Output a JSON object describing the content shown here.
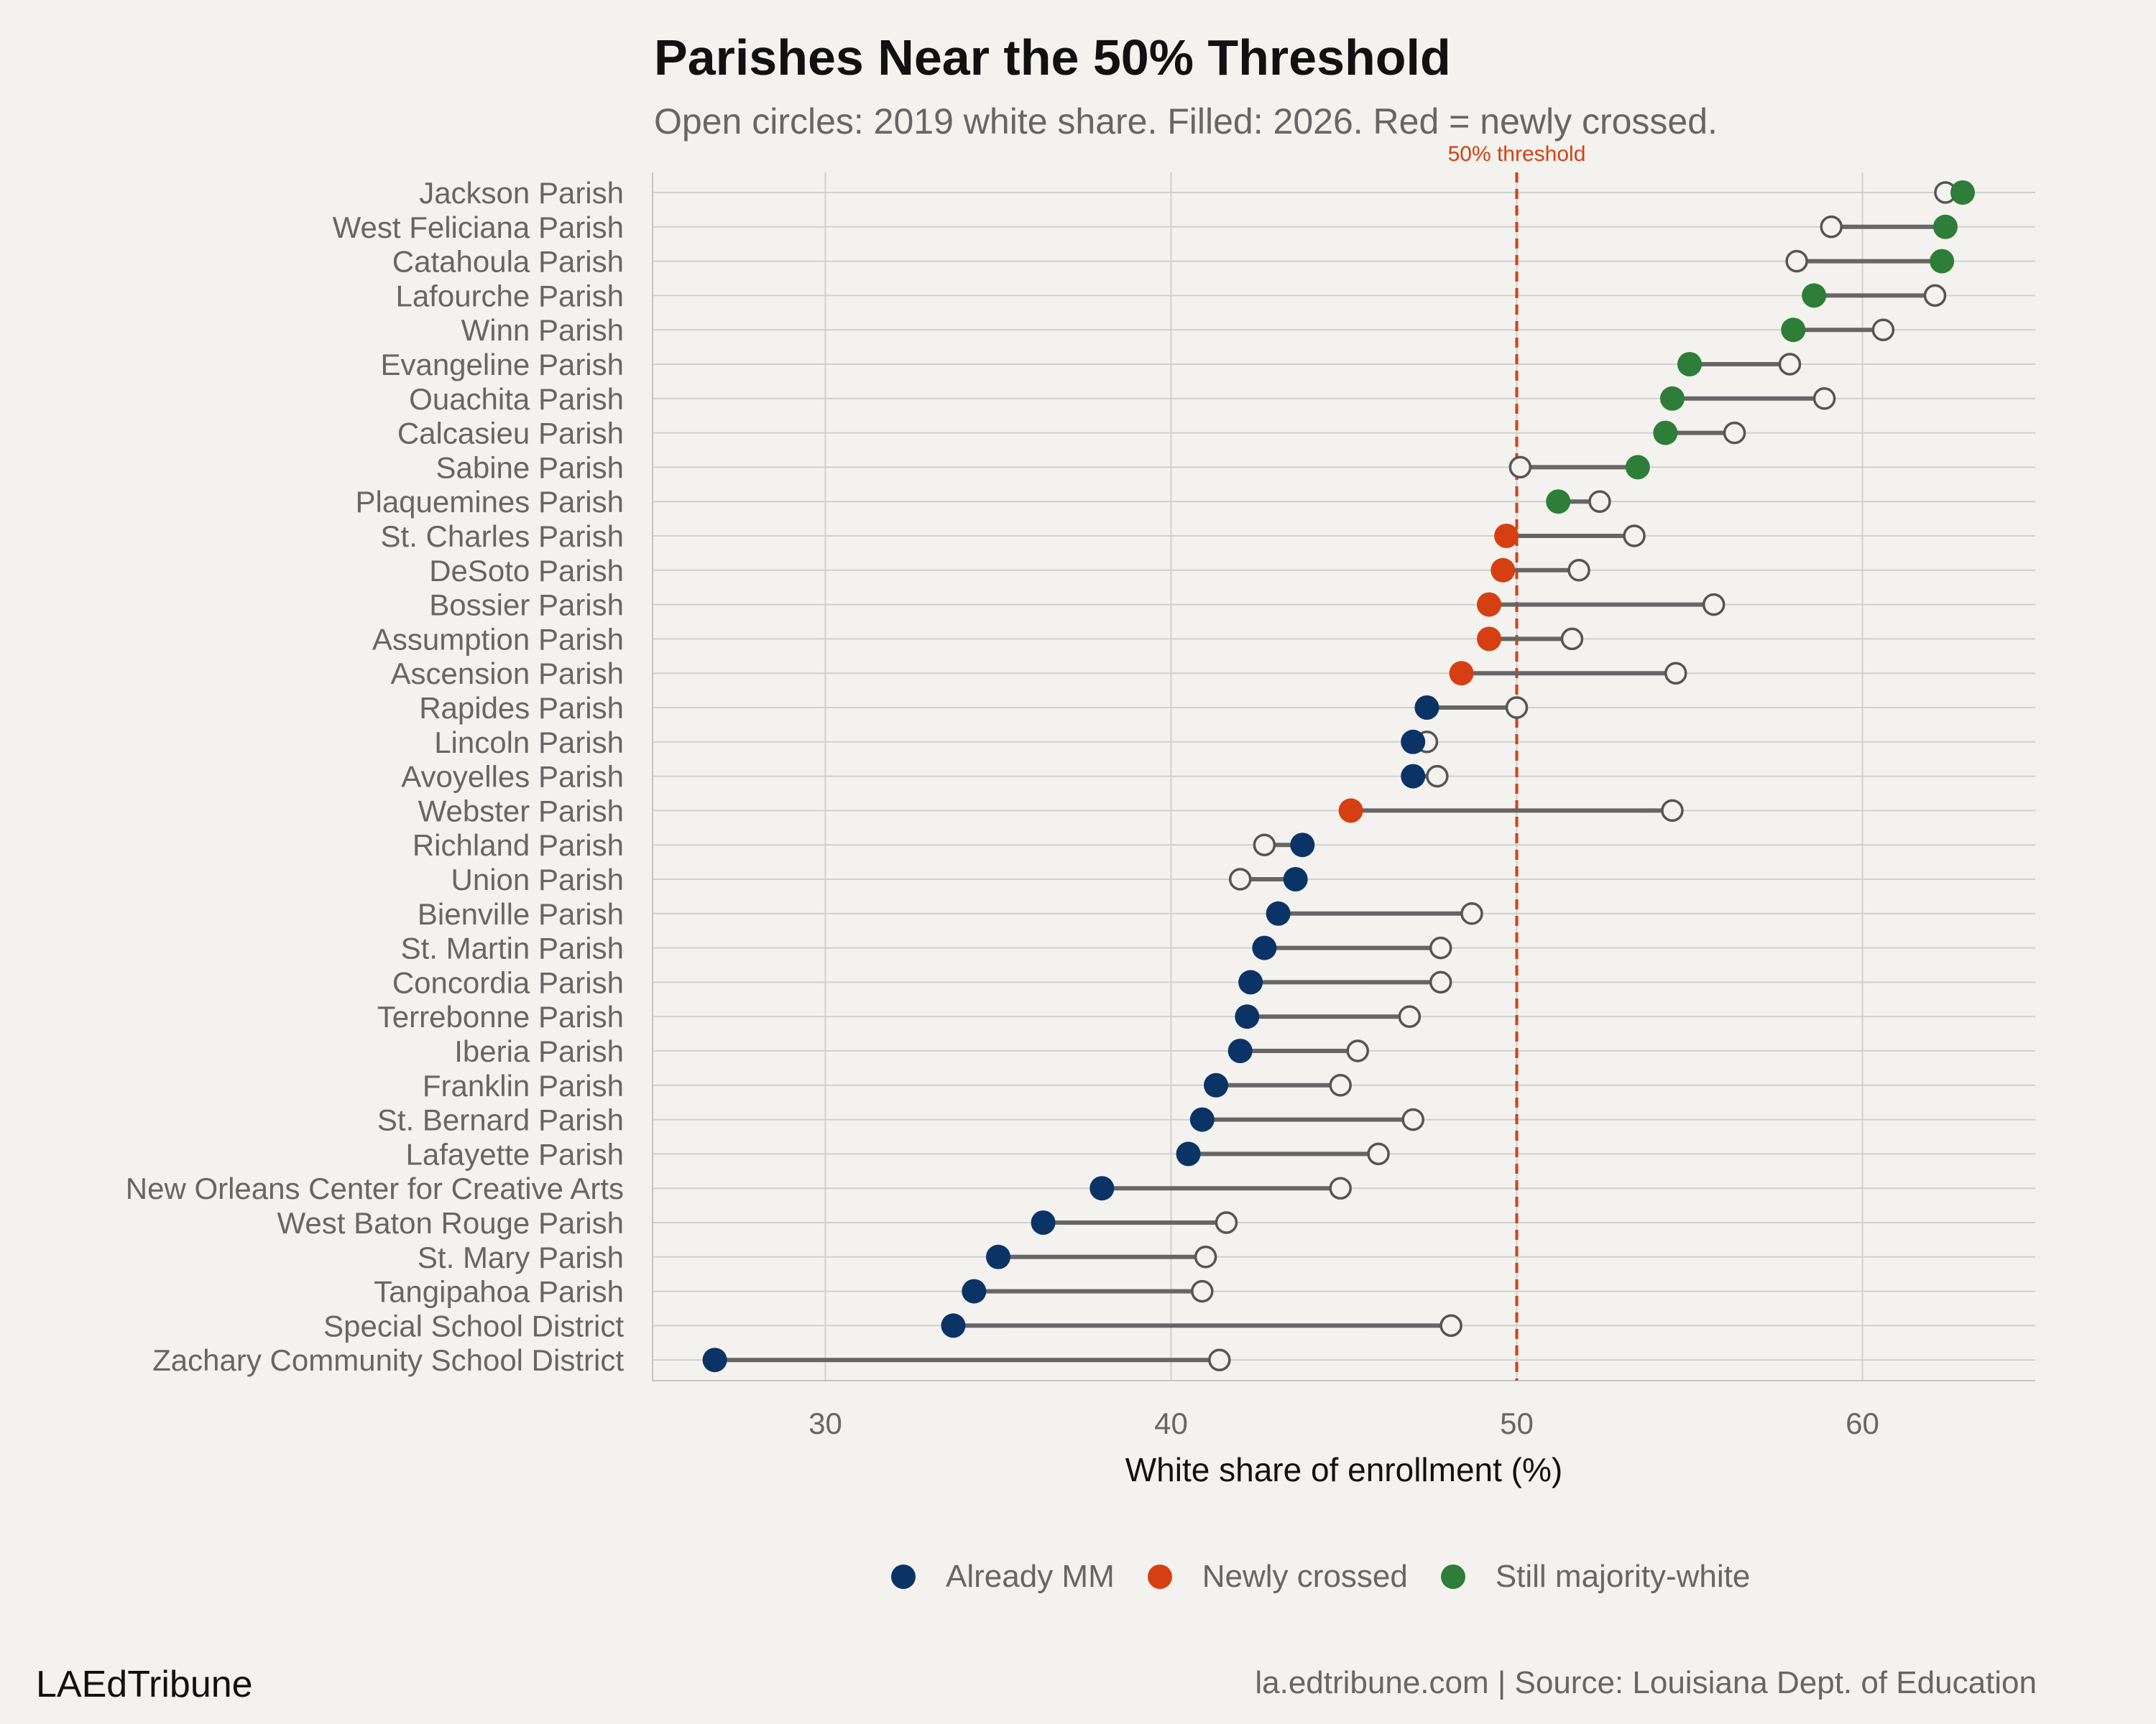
{
  "title": "Parishes Near the 50% Threshold",
  "subtitle": "Open circles: 2019 white share. Filled: 2026. Red = newly crossed.",
  "colors": {
    "already_mm": "#0b3366",
    "newly_crossed": "#d63f12",
    "still_majority_white": "#2e7d38",
    "segment": "#666666",
    "open_circle": "#555555",
    "threshold": "#d63f12",
    "grid": "#d0d0d0",
    "background": "#f4f2ee"
  },
  "legend": [
    {
      "key": "already_mm",
      "label": "Already MM"
    },
    {
      "key": "newly_crossed",
      "label": "Newly crossed"
    },
    {
      "key": "still_majority_white",
      "label": "Still majority-white"
    }
  ],
  "footer": {
    "brand": "LAEdTribune",
    "source": "la.edtribune.com | Source: Louisiana Dept. of Education"
  },
  "chart_data": {
    "type": "dumbbell",
    "xlabel": "White share of enrollment (%)",
    "ylabel": "",
    "xlim": [
      25,
      65
    ],
    "x_ticks": [
      30,
      40,
      50,
      60
    ],
    "grid": true,
    "legend_position": "bottom",
    "threshold": {
      "value": 50,
      "label": "50% threshold"
    },
    "series_labels": {
      "start": "2019",
      "end": "2026"
    },
    "rows": [
      {
        "name": "Jackson Parish",
        "y2019": 62.4,
        "y2026": 62.9,
        "category": "still_majority_white"
      },
      {
        "name": "West Feliciana Parish",
        "y2019": 59.1,
        "y2026": 62.4,
        "category": "still_majority_white"
      },
      {
        "name": "Catahoula Parish",
        "y2019": 58.1,
        "y2026": 62.3,
        "category": "still_majority_white"
      },
      {
        "name": "Lafourche Parish",
        "y2019": 62.1,
        "y2026": 58.6,
        "category": "still_majority_white"
      },
      {
        "name": "Winn Parish",
        "y2019": 60.6,
        "y2026": 58.0,
        "category": "still_majority_white"
      },
      {
        "name": "Evangeline Parish",
        "y2019": 57.9,
        "y2026": 55.0,
        "category": "still_majority_white"
      },
      {
        "name": "Ouachita Parish",
        "y2019": 58.9,
        "y2026": 54.5,
        "category": "still_majority_white"
      },
      {
        "name": "Calcasieu Parish",
        "y2019": 56.3,
        "y2026": 54.3,
        "category": "still_majority_white"
      },
      {
        "name": "Sabine Parish",
        "y2019": 50.1,
        "y2026": 53.5,
        "category": "still_majority_white"
      },
      {
        "name": "Plaquemines Parish",
        "y2019": 52.4,
        "y2026": 51.2,
        "category": "still_majority_white"
      },
      {
        "name": "St. Charles Parish",
        "y2019": 53.4,
        "y2026": 49.7,
        "category": "newly_crossed"
      },
      {
        "name": "DeSoto Parish",
        "y2019": 51.8,
        "y2026": 49.6,
        "category": "newly_crossed"
      },
      {
        "name": "Bossier Parish",
        "y2019": 55.7,
        "y2026": 49.2,
        "category": "newly_crossed"
      },
      {
        "name": "Assumption Parish",
        "y2019": 51.6,
        "y2026": 49.2,
        "category": "newly_crossed"
      },
      {
        "name": "Ascension Parish",
        "y2019": 54.6,
        "y2026": 48.4,
        "category": "newly_crossed"
      },
      {
        "name": "Rapides Parish",
        "y2019": 50.0,
        "y2026": 47.4,
        "category": "already_mm"
      },
      {
        "name": "Lincoln Parish",
        "y2019": 47.4,
        "y2026": 47.0,
        "category": "already_mm"
      },
      {
        "name": "Avoyelles Parish",
        "y2019": 47.7,
        "y2026": 47.0,
        "category": "already_mm"
      },
      {
        "name": "Webster Parish",
        "y2019": 54.5,
        "y2026": 45.2,
        "category": "newly_crossed"
      },
      {
        "name": "Richland Parish",
        "y2019": 42.7,
        "y2026": 43.8,
        "category": "already_mm"
      },
      {
        "name": "Union Parish",
        "y2019": 42.0,
        "y2026": 43.6,
        "category": "already_mm"
      },
      {
        "name": "Bienville Parish",
        "y2019": 48.7,
        "y2026": 43.1,
        "category": "already_mm"
      },
      {
        "name": "St. Martin Parish",
        "y2019": 47.8,
        "y2026": 42.7,
        "category": "already_mm"
      },
      {
        "name": "Concordia Parish",
        "y2019": 47.8,
        "y2026": 42.3,
        "category": "already_mm"
      },
      {
        "name": "Terrebonne Parish",
        "y2019": 46.9,
        "y2026": 42.2,
        "category": "already_mm"
      },
      {
        "name": "Iberia Parish",
        "y2019": 45.4,
        "y2026": 42.0,
        "category": "already_mm"
      },
      {
        "name": "Franklin Parish",
        "y2019": 44.9,
        "y2026": 41.3,
        "category": "already_mm"
      },
      {
        "name": "St. Bernard Parish",
        "y2019": 47.0,
        "y2026": 40.9,
        "category": "already_mm"
      },
      {
        "name": "Lafayette Parish",
        "y2019": 46.0,
        "y2026": 40.5,
        "category": "already_mm"
      },
      {
        "name": "New Orleans Center for Creative Arts",
        "y2019": 44.9,
        "y2026": 38.0,
        "category": "already_mm"
      },
      {
        "name": "West Baton Rouge Parish",
        "y2019": 41.6,
        "y2026": 36.3,
        "category": "already_mm"
      },
      {
        "name": "St. Mary Parish",
        "y2019": 41.0,
        "y2026": 35.0,
        "category": "already_mm"
      },
      {
        "name": "Tangipahoa Parish",
        "y2019": 40.9,
        "y2026": 34.3,
        "category": "already_mm"
      },
      {
        "name": "Special School District",
        "y2019": 48.1,
        "y2026": 33.7,
        "category": "already_mm"
      },
      {
        "name": "Zachary Community School District",
        "y2019": 41.4,
        "y2026": 26.8,
        "category": "already_mm"
      }
    ]
  }
}
